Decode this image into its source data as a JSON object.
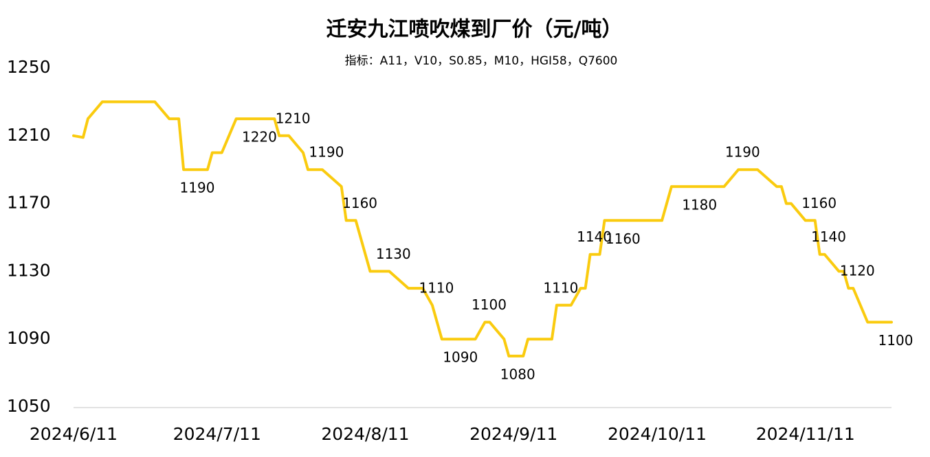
{
  "chart_data": {
    "type": "line",
    "title": "迁安九江喷吹煤到厂价（元/吨）",
    "subtitle": "指标：A11，V10，S0.85，M10，HGI58，Q7600",
    "x": [
      "2024/6/11",
      "2024/6/13",
      "2024/6/14",
      "2024/6/17",
      "2024/6/28",
      "2024/7/1",
      "2024/7/3",
      "2024/7/4",
      "2024/7/6",
      "2024/7/9",
      "2024/7/10",
      "2024/7/12",
      "2024/7/15",
      "2024/7/19",
      "2024/7/23",
      "2024/7/24",
      "2024/7/26",
      "2024/7/29",
      "2024/7/30",
      "2024/8/2",
      "2024/8/6",
      "2024/8/7",
      "2024/8/9",
      "2024/8/12",
      "2024/8/16",
      "2024/8/20",
      "2024/8/23",
      "2024/8/25",
      "2024/8/27",
      "2024/8/30",
      "2024/9/3",
      "2024/9/5",
      "2024/9/6",
      "2024/9/9",
      "2024/9/10",
      "2024/9/11",
      "2024/9/13",
      "2024/9/14",
      "2024/9/19",
      "2024/9/20",
      "2024/9/23",
      "2024/9/25",
      "2024/9/26",
      "2024/9/27",
      "2024/9/29",
      "2024/9/30",
      "2024/10/3",
      "2024/10/12",
      "2024/10/14",
      "2024/10/19",
      "2024/10/25",
      "2024/10/28",
      "2024/11/1",
      "2024/11/5",
      "2024/11/6",
      "2024/11/7",
      "2024/11/8",
      "2024/11/11",
      "2024/11/13",
      "2024/11/14",
      "2024/11/15",
      "2024/11/18",
      "2024/11/19",
      "2024/11/20",
      "2024/11/21",
      "2024/11/24",
      "2024/11/29"
    ],
    "series": [
      {
        "color": "#FACB0F",
        "values": [
          1210,
          1209,
          1220,
          1230,
          1230,
          1220,
          1220,
          1190,
          1190,
          1190,
          1200,
          1200,
          1220,
          1220,
          1220,
          1210,
          1210,
          1200,
          1190,
          1190,
          1180,
          1160,
          1160,
          1130,
          1130,
          1120,
          1120,
          1110,
          1090,
          1090,
          1090,
          1100,
          1100,
          1090,
          1080,
          1080,
          1080,
          1090,
          1090,
          1110,
          1110,
          1120,
          1120,
          1140,
          1140,
          1160,
          1160,
          1160,
          1180,
          1180,
          1180,
          1190,
          1190,
          1180,
          1180,
          1170,
          1170,
          1160,
          1160,
          1140,
          1140,
          1130,
          1130,
          1120,
          1120,
          1100,
          1100
        ],
        "value_labels": [
          null,
          null,
          null,
          null,
          null,
          null,
          null,
          null,
          "1190",
          null,
          null,
          null,
          null,
          "1220",
          null,
          null,
          "1210",
          null,
          null,
          "1190",
          null,
          null,
          "1160",
          null,
          "1130",
          null,
          null,
          "1110",
          null,
          "1090",
          null,
          "1100",
          null,
          null,
          null,
          "1080",
          null,
          null,
          null,
          "1110",
          null,
          null,
          null,
          "1140",
          null,
          null,
          "1160",
          null,
          null,
          "1180",
          null,
          "1190",
          null,
          null,
          null,
          null,
          null,
          null,
          "1160",
          null,
          "1140",
          null,
          null,
          null,
          "1120",
          null,
          "1100"
        ]
      }
    ],
    "xlim": [
      "2024/6/11",
      "2024/11/29"
    ],
    "xticks": [
      "2024/6/11",
      "2024/7/11",
      "2024/8/11",
      "2024/9/11",
      "2024/10/11",
      "2024/11/11"
    ],
    "ylim": [
      1050,
      1250
    ],
    "yticks": [
      1050,
      1090,
      1130,
      1170,
      1210,
      1250
    ]
  }
}
